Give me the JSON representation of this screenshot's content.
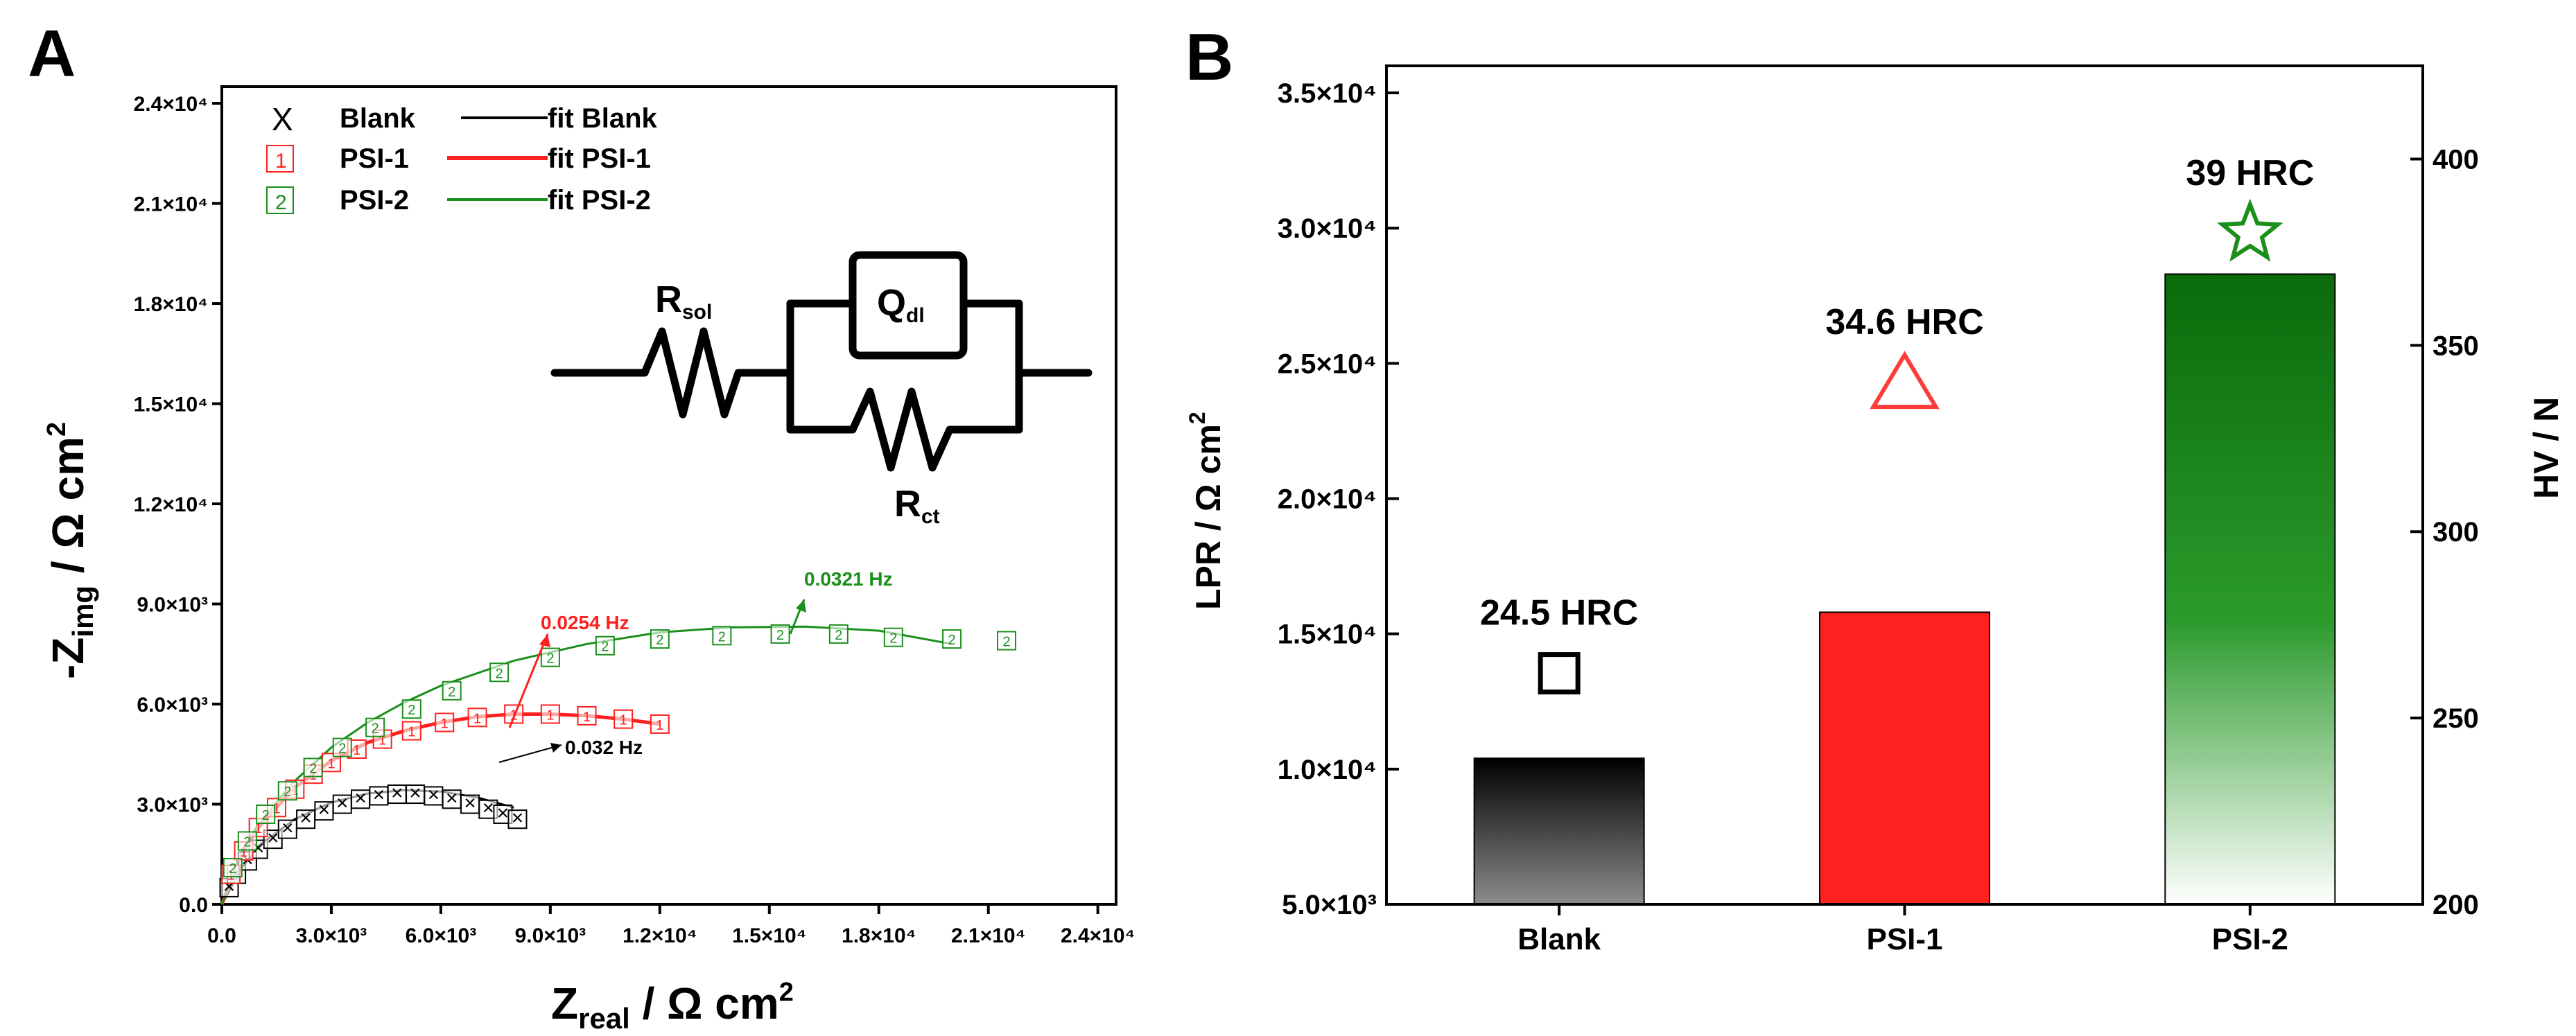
{
  "panel_a_letter": "A",
  "panel_b_letter": "B",
  "colors": {
    "blank": "#000000",
    "psi1": "#ff2020",
    "psi2": "#1a8f1a"
  },
  "circuit": {
    "r_sol": "R",
    "r_sol_sub": "sol",
    "q_dl": "Q",
    "q_dl_sub": "dl",
    "r_ct": "R",
    "r_ct_sub": "ct"
  },
  "legend": [
    {
      "marker": "X",
      "label": "Blank",
      "fit_label": "fit Blank",
      "color": "#000000"
    },
    {
      "marker": "1",
      "label": "PSI-1",
      "fit_label": "fit PSI-1",
      "color": "#ff2020"
    },
    {
      "marker": "2",
      "label": "PSI-2",
      "fit_label": "fit PSI-2",
      "color": "#1a8f1a"
    }
  ],
  "freq_labels": [
    {
      "text": "0.032 Hz",
      "color": "#000000"
    },
    {
      "text": "0.0254 Hz",
      "color": "#ff2020"
    },
    {
      "text": "0.0321 Hz",
      "color": "#1a8f1a"
    }
  ],
  "chart_data": [
    {
      "type": "scatter",
      "xlabel": "Z_real / Ω cm²",
      "ylabel": "-Z_img / Ω cm²",
      "xlim": [
        0,
        24500
      ],
      "ylim": [
        0,
        24500
      ],
      "xticks": [
        0,
        3000,
        6000,
        9000,
        12000,
        15000,
        18000,
        21000,
        24000
      ],
      "yticks": [
        0,
        3000,
        6000,
        9000,
        12000,
        15000,
        18000,
        21000,
        24000
      ],
      "xtick_labels": [
        "0.0",
        "3.0×10³",
        "6.0×10³",
        "9.0×10³",
        "1.2×10⁴",
        "1.5×10⁴",
        "1.8×10⁴",
        "2.1×10⁴",
        "2.4×10⁴"
      ],
      "ytick_labels": [
        "0.0",
        "3.0×10³",
        "6.0×10³",
        "9.0×10³",
        "1.2×10⁴",
        "1.5×10⁴",
        "1.8×10⁴",
        "2.1×10⁴",
        "2.4×10⁴"
      ],
      "series": [
        {
          "name": "Blank",
          "x": [
            200,
            400,
            700,
            1000,
            1400,
            1800,
            2300,
            2800,
            3300,
            3800,
            4300,
            4800,
            5300,
            5800,
            6300,
            6800,
            7300,
            7700,
            8100
          ],
          "y": [
            500,
            900,
            1300,
            1650,
            1950,
            2250,
            2550,
            2800,
            3000,
            3150,
            3250,
            3300,
            3300,
            3250,
            3150,
            3000,
            2850,
            2700,
            2550
          ]
        },
        {
          "name": "fit Blank",
          "x": [
            0,
            500,
            1000,
            2000,
            3000,
            4000,
            5000,
            6000,
            7000,
            8000
          ],
          "y": [
            0,
            1000,
            1750,
            2550,
            3050,
            3320,
            3420,
            3380,
            3200,
            2900
          ]
        },
        {
          "name": "PSI-1",
          "x": [
            250,
            600,
            1000,
            1500,
            2000,
            2500,
            3000,
            3700,
            4400,
            5200,
            6100,
            7000,
            8000,
            9000,
            10000,
            11000,
            12000
          ],
          "y": [
            900,
            1600,
            2300,
            2900,
            3450,
            3900,
            4250,
            4650,
            4950,
            5200,
            5450,
            5600,
            5700,
            5700,
            5650,
            5550,
            5400
          ]
        },
        {
          "name": "fit PSI-1",
          "x": [
            0,
            500,
            1000,
            2000,
            3000,
            4000,
            5000,
            6000,
            7000,
            8000,
            9000,
            10000,
            11000,
            12000
          ],
          "y": [
            0,
            1400,
            2300,
            3500,
            4300,
            4850,
            5200,
            5450,
            5620,
            5700,
            5700,
            5650,
            5550,
            5400
          ]
        },
        {
          "name": "PSI-2",
          "x": [
            300,
            700,
            1200,
            1800,
            2500,
            3300,
            4200,
            5200,
            6300,
            7600,
            9000,
            10500,
            12000,
            13700,
            15300,
            16900,
            18400,
            20000,
            21500
          ],
          "y": [
            1100,
            1900,
            2700,
            3400,
            4100,
            4700,
            5300,
            5850,
            6400,
            6950,
            7400,
            7750,
            7950,
            8050,
            8100,
            8100,
            8000,
            7950,
            7900
          ]
        },
        {
          "name": "fit PSI-2",
          "x": [
            0,
            500,
            1000,
            2000,
            3000,
            4000,
            5000,
            6000,
            8000,
            10000,
            12000,
            14000,
            16000,
            18000,
            20000
          ],
          "y": [
            0,
            1500,
            2400,
            3700,
            4700,
            5450,
            6050,
            6550,
            7300,
            7800,
            8150,
            8300,
            8320,
            8200,
            7800
          ]
        }
      ]
    },
    {
      "type": "bar",
      "categories": [
        "Blank",
        "PSI-1",
        "PSI-2"
      ],
      "values": [
        10400,
        15800,
        28300
      ],
      "ylabel": "LPR / Ω cm²",
      "ylim": [
        5000,
        36000
      ],
      "yticks": [
        5000,
        10000,
        15000,
        20000,
        25000,
        30000,
        35000
      ],
      "ytick_labels": [
        "5.0×10³",
        "1.0×10⁴",
        "1.5×10⁴",
        "2.0×10⁴",
        "2.5×10⁴",
        "3.0×10⁴",
        "3.5×10⁴"
      ],
      "y2label": "HV / N",
      "y2lim": [
        200,
        425
      ],
      "y2ticks": [
        200,
        250,
        300,
        350,
        400
      ],
      "y2tick_labels": [
        "200",
        "250",
        "300",
        "350",
        "400"
      ],
      "hardness_series": {
        "values": [
          262,
          340,
          380
        ],
        "labels": [
          "24.5 HRC",
          "34.6 HRC",
          "39 HRC"
        ],
        "markers": [
          "square",
          "triangle",
          "star"
        ]
      }
    }
  ]
}
